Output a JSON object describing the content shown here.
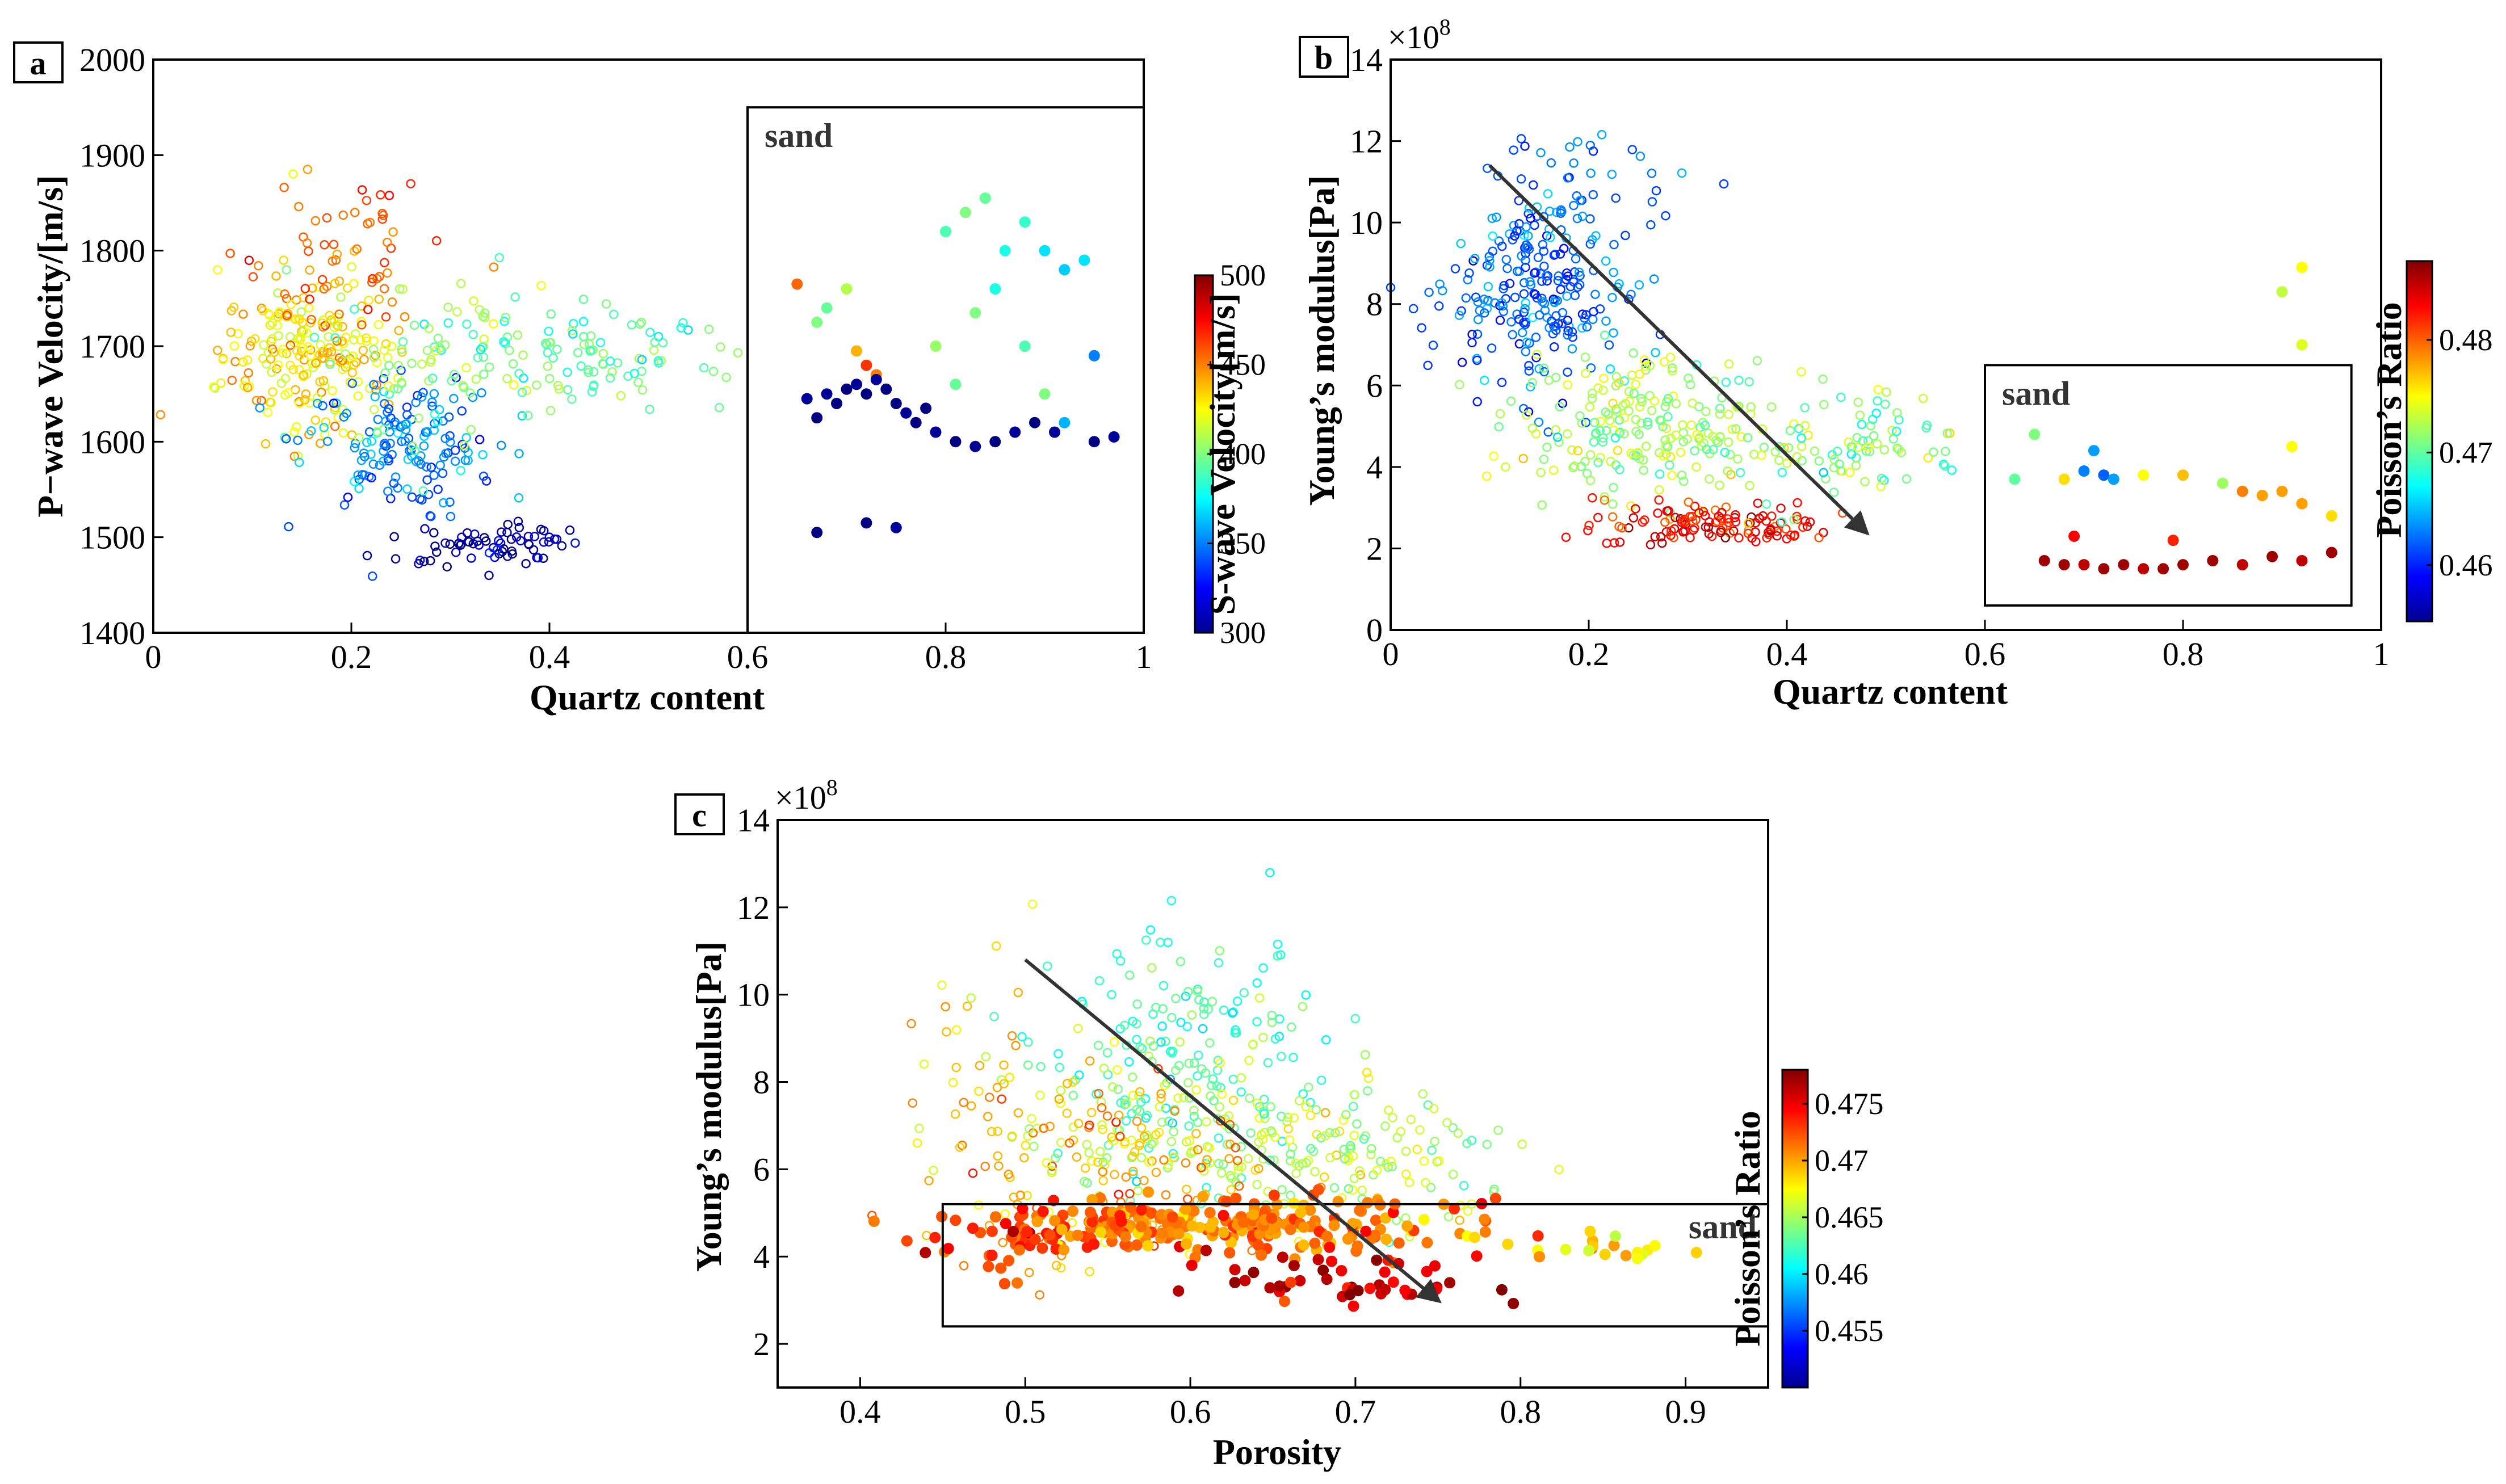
{
  "figure": {
    "panels": [
      "a",
      "b",
      "c"
    ]
  },
  "chart_data": [
    {
      "panel": "a",
      "type": "scatter",
      "title": "",
      "xlabel": "Quartz content",
      "ylabel": "P−wave Velocity/[m/s]",
      "xlim": [
        0,
        1
      ],
      "ylim": [
        1400,
        2000
      ],
      "xticks": [
        "0",
        "0.2",
        "0.4",
        "0.6",
        "0.8",
        "1"
      ],
      "yticks": [
        "1400",
        "1500",
        "1600",
        "1700",
        "1800",
        "1900",
        "2000"
      ],
      "colorbar": {
        "label": "S-wave Velocity[m/s]",
        "range": [
          300,
          500
        ],
        "ticks": [
          "300",
          "350",
          "400",
          "450",
          "500"
        ]
      },
      "annotation": "sand",
      "sand_box": {
        "x": [
          0.6,
          1.0
        ],
        "y": [
          1400,
          1950
        ]
      },
      "sample_series": {
        "name": "samples (open)",
        "clusters": [
          {
            "cx": 0.16,
            "cy": 1690,
            "sx": 0.045,
            "sy": 40,
            "c": 430,
            "n": 220
          },
          {
            "cx": 0.18,
            "cy": 1800,
            "sx": 0.05,
            "sy": 45,
            "c": 455,
            "n": 60
          },
          {
            "cx": 0.25,
            "cy": 1600,
            "sx": 0.05,
            "sy": 35,
            "c": 350,
            "n": 150
          },
          {
            "cx": 0.34,
            "cy": 1495,
            "sx": 0.05,
            "sy": 12,
            "c": 305,
            "n": 70
          },
          {
            "cx": 0.45,
            "cy": 1690,
            "sx": 0.06,
            "sy": 25,
            "c": 390,
            "n": 80
          },
          {
            "cx": 0.3,
            "cy": 1690,
            "sx": 0.06,
            "sy": 45,
            "c": 400,
            "n": 90
          }
        ]
      },
      "sand_series": {
        "name": "sand (filled)",
        "points": [
          [
            0.65,
            1765,
            455
          ],
          [
            0.67,
            1725,
            400
          ],
          [
            0.68,
            1740,
            395
          ],
          [
            0.7,
            1760,
            410
          ],
          [
            0.71,
            1695,
            440
          ],
          [
            0.72,
            1680,
            465
          ],
          [
            0.73,
            1670,
            450
          ],
          [
            0.66,
            1645,
            305
          ],
          [
            0.67,
            1625,
            300
          ],
          [
            0.68,
            1650,
            305
          ],
          [
            0.69,
            1640,
            300
          ],
          [
            0.7,
            1655,
            300
          ],
          [
            0.71,
            1660,
            305
          ],
          [
            0.72,
            1650,
            300
          ],
          [
            0.73,
            1665,
            305
          ],
          [
            0.74,
            1655,
            300
          ],
          [
            0.75,
            1640,
            300
          ],
          [
            0.76,
            1630,
            305
          ],
          [
            0.77,
            1620,
            300
          ],
          [
            0.78,
            1635,
            300
          ],
          [
            0.79,
            1610,
            305
          ],
          [
            0.81,
            1600,
            300
          ],
          [
            0.83,
            1595,
            305
          ],
          [
            0.85,
            1600,
            300
          ],
          [
            0.87,
            1610,
            305
          ],
          [
            0.89,
            1620,
            300
          ],
          [
            0.91,
            1610,
            305
          ],
          [
            0.95,
            1600,
            300
          ],
          [
            0.97,
            1605,
            305
          ],
          [
            0.67,
            1505,
            300
          ],
          [
            0.72,
            1515,
            300
          ],
          [
            0.75,
            1510,
            305
          ],
          [
            0.8,
            1820,
            390
          ],
          [
            0.82,
            1840,
            400
          ],
          [
            0.84,
            1855,
            395
          ],
          [
            0.86,
            1800,
            380
          ],
          [
            0.88,
            1830,
            385
          ],
          [
            0.9,
            1800,
            370
          ],
          [
            0.92,
            1780,
            365
          ],
          [
            0.94,
            1790,
            370
          ],
          [
            0.85,
            1760,
            380
          ],
          [
            0.88,
            1700,
            390
          ],
          [
            0.9,
            1650,
            400
          ],
          [
            0.92,
            1620,
            360
          ],
          [
            0.95,
            1690,
            350
          ],
          [
            0.79,
            1700,
            405
          ],
          [
            0.81,
            1660,
            395
          ],
          [
            0.83,
            1735,
            400
          ]
        ]
      }
    },
    {
      "panel": "b",
      "type": "scatter",
      "title": "",
      "xlabel": "Quartz content",
      "ylabel": "Young’s modulus[Pa]",
      "multiplier": "×10",
      "multiplier_exp": "8",
      "xlim": [
        0,
        1
      ],
      "ylim": [
        0,
        14
      ],
      "xticks": [
        "0",
        "0.2",
        "0.4",
        "0.6",
        "0.8",
        "1"
      ],
      "yticks": [
        "0",
        "2",
        "4",
        "6",
        "8",
        "10",
        "12",
        "14"
      ],
      "colorbar": {
        "label": "Poisson’s Ratio",
        "range": [
          0.455,
          0.487
        ],
        "ticks": [
          "0.46",
          "0.47",
          "0.48"
        ]
      },
      "annotation": "sand",
      "sand_box": {
        "x": [
          0.6,
          0.97
        ],
        "y": [
          0.6,
          6.5
        ]
      },
      "arrow": {
        "from": [
          0.1,
          11.4
        ],
        "to": [
          0.48,
          2.4
        ]
      },
      "sample_series": {
        "name": "samples (open)",
        "clusters": [
          {
            "cx": 0.15,
            "cy": 8.2,
            "sx": 0.045,
            "sy": 1.3,
            "c": 0.462,
            "n": 240
          },
          {
            "cx": 0.25,
            "cy": 5.0,
            "sx": 0.06,
            "sy": 0.8,
            "c": 0.472,
            "n": 200
          },
          {
            "cx": 0.33,
            "cy": 2.6,
            "sx": 0.06,
            "sy": 0.3,
            "c": 0.483,
            "n": 120
          },
          {
            "cx": 0.45,
            "cy": 4.6,
            "sx": 0.07,
            "sy": 0.7,
            "c": 0.471,
            "n": 100
          },
          {
            "cx": 0.2,
            "cy": 11.0,
            "sx": 0.05,
            "sy": 0.7,
            "c": 0.463,
            "n": 30
          }
        ]
      },
      "sand_series": {
        "name": "sand (filled)",
        "points": [
          [
            0.65,
            4.8,
            0.471
          ],
          [
            0.7,
            3.9,
            0.463
          ],
          [
            0.71,
            4.4,
            0.464
          ],
          [
            0.72,
            3.8,
            0.462
          ],
          [
            0.73,
            3.7,
            0.464
          ],
          [
            0.68,
            3.7,
            0.476
          ],
          [
            0.76,
            3.8,
            0.475
          ],
          [
            0.8,
            3.8,
            0.477
          ],
          [
            0.84,
            3.6,
            0.472
          ],
          [
            0.86,
            3.4,
            0.479
          ],
          [
            0.88,
            3.3,
            0.478
          ],
          [
            0.9,
            3.4,
            0.478
          ],
          [
            0.92,
            3.1,
            0.478
          ],
          [
            0.95,
            2.8,
            0.476
          ],
          [
            0.91,
            4.5,
            0.475
          ],
          [
            0.66,
            1.7,
            0.486
          ],
          [
            0.68,
            1.6,
            0.486
          ],
          [
            0.7,
            1.6,
            0.485
          ],
          [
            0.72,
            1.5,
            0.486
          ],
          [
            0.74,
            1.6,
            0.486
          ],
          [
            0.76,
            1.5,
            0.485
          ],
          [
            0.78,
            1.5,
            0.486
          ],
          [
            0.8,
            1.6,
            0.486
          ],
          [
            0.83,
            1.7,
            0.486
          ],
          [
            0.86,
            1.6,
            0.485
          ],
          [
            0.89,
            1.8,
            0.486
          ],
          [
            0.92,
            1.7,
            0.485
          ],
          [
            0.95,
            1.9,
            0.486
          ],
          [
            0.79,
            2.2,
            0.482
          ],
          [
            0.69,
            2.3,
            0.483
          ]
        ]
      },
      "extra_points": [
        [
          0.92,
          8.9,
          0.475
        ],
        [
          0.9,
          8.3,
          0.473
        ],
        [
          0.92,
          7.0,
          0.474
        ],
        [
          0.63,
          3.7,
          0.47
        ]
      ]
    },
    {
      "panel": "c",
      "type": "scatter",
      "title": "",
      "xlabel": "Porosity",
      "ylabel": "Young’s modulus[Pa]",
      "multiplier": "×10",
      "multiplier_exp": "8",
      "xlim": [
        0.35,
        0.95
      ],
      "ylim": [
        1,
        14
      ],
      "xticks": [
        "0.4",
        "0.5",
        "0.6",
        "0.7",
        "0.8",
        "0.9"
      ],
      "yticks": [
        "2",
        "4",
        "6",
        "8",
        "10",
        "12",
        "14"
      ],
      "colorbar": {
        "label": "Poisson’s Ratio",
        "range": [
          0.45,
          0.478
        ],
        "ticks": [
          "0.455",
          "0.46",
          "0.465",
          "0.47",
          "0.475"
        ]
      },
      "annotation": "sand",
      "sand_box": {
        "x": [
          0.45,
          0.95
        ],
        "y": [
          2.4,
          5.2
        ]
      },
      "arrow": {
        "from": [
          0.5,
          10.8
        ],
        "to": [
          0.75,
          3.0
        ]
      },
      "sample_series": {
        "name": "samples (open)",
        "clusters": [
          {
            "cx": 0.6,
            "cy": 8.5,
            "sx": 0.04,
            "sy": 1.3,
            "c": 0.462,
            "n": 160
          },
          {
            "cx": 0.62,
            "cy": 6.7,
            "sx": 0.06,
            "sy": 0.9,
            "c": 0.466,
            "n": 200
          },
          {
            "cx": 0.55,
            "cy": 6.0,
            "sx": 0.05,
            "sy": 1.2,
            "c": 0.47,
            "n": 120
          },
          {
            "cx": 0.48,
            "cy": 8.0,
            "sx": 0.03,
            "sy": 1.5,
            "c": 0.469,
            "n": 40
          },
          {
            "cx": 0.72,
            "cy": 6.0,
            "sx": 0.04,
            "sy": 1.0,
            "c": 0.465,
            "n": 60
          }
        ]
      },
      "sand_series": {
        "name": "sand (filled)",
        "clusters": [
          {
            "cx": 0.62,
            "cy": 4.7,
            "sx": 0.07,
            "sy": 0.3,
            "c": 0.471,
            "n": 240
          },
          {
            "cx": 0.7,
            "cy": 3.5,
            "sx": 0.04,
            "sy": 0.4,
            "c": 0.476,
            "n": 50
          },
          {
            "cx": 0.5,
            "cy": 4.5,
            "sx": 0.03,
            "sy": 0.4,
            "c": 0.473,
            "n": 50
          },
          {
            "cx": 0.84,
            "cy": 4.2,
            "sx": 0.03,
            "sy": 0.2,
            "c": 0.468,
            "n": 20
          }
        ]
      }
    }
  ]
}
